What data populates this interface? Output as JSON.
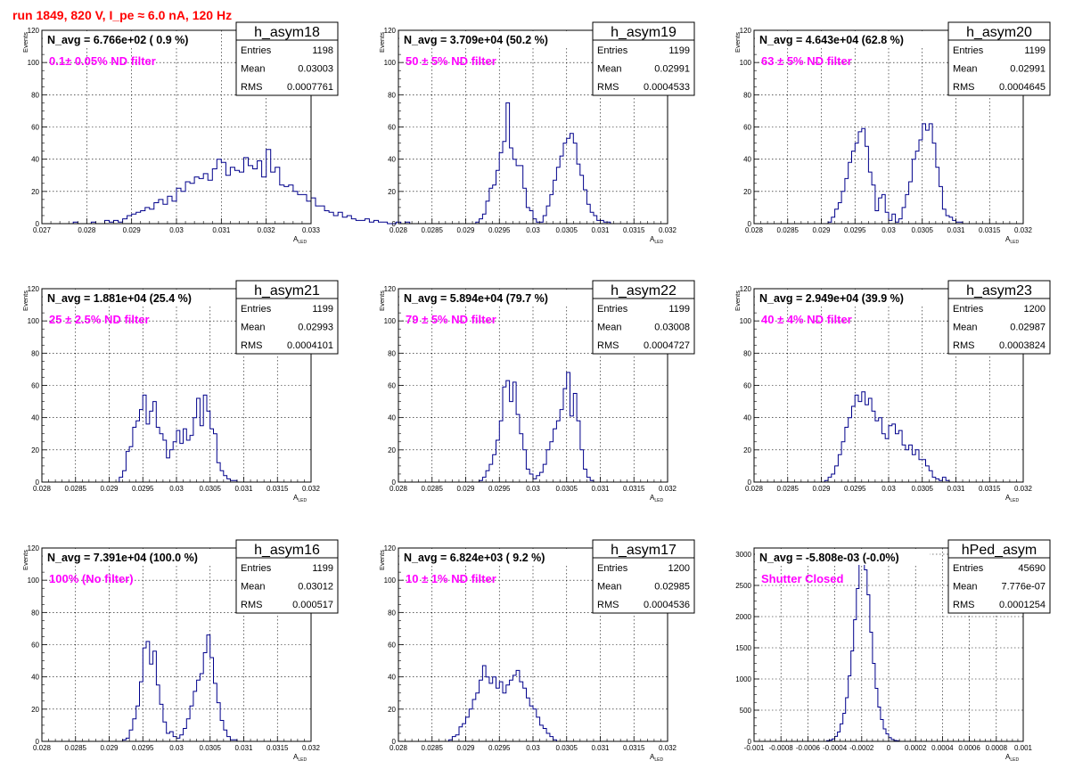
{
  "page": {
    "header": "run 1849,   820 V, I_pe ≈ 6.0 nA, 120 Hz",
    "colors": {
      "hist": "#00008b",
      "filter_text": "#ff00ff",
      "header": "#ff0000",
      "grid": "#000000"
    }
  },
  "chart_data": [
    {
      "type": "bar",
      "name": "h_asym18",
      "title": "N_avg = 6.766e+02 ( 0.9 %)",
      "annotation": "0.1± 0.05% ND filter",
      "stats": [
        {
          "label": "Entries",
          "value": "1198"
        },
        {
          "label": "Mean",
          "value": "0.03003"
        },
        {
          "label": "RMS",
          "value": "0.0007761"
        }
      ],
      "xlabel": "A",
      "xlabel_sub": "LED",
      "ylabel": "Events",
      "xlim": [
        0.027,
        0.033
      ],
      "ylim": [
        0,
        120
      ],
      "xticks": [
        0.027,
        0.028,
        0.029,
        0.03,
        0.031,
        0.032,
        0.033
      ],
      "xtick_labels": [
        "0.027",
        "0.028",
        "0.029",
        "0.03",
        "0.031",
        "0.032",
        "0.033"
      ],
      "yticks": [
        0,
        20,
        40,
        60,
        80,
        100,
        120
      ],
      "ytick_labels": [
        "0",
        "20",
        "40",
        "60",
        "80",
        "100",
        "120"
      ],
      "grid": true,
      "x_start": 0.0277,
      "bin_width": 0.0001,
      "values": [
        1,
        0,
        0,
        0,
        1,
        0,
        0,
        2,
        1,
        2,
        1,
        3,
        5,
        6,
        7,
        8,
        10,
        9,
        13,
        15,
        12,
        17,
        14,
        22,
        20,
        26,
        25,
        29,
        28,
        31,
        27,
        34,
        40,
        38,
        30,
        35,
        33,
        32,
        41,
        36,
        34,
        39,
        29,
        46,
        32,
        35,
        24,
        23,
        24,
        20,
        18,
        18,
        14,
        16,
        11,
        11,
        8,
        7,
        5,
        7,
        4,
        5,
        3,
        2,
        2,
        3,
        1,
        2,
        1,
        1,
        0,
        0,
        1,
        0,
        1
      ]
    },
    {
      "type": "bar",
      "name": "h_asym19",
      "title": "N_avg = 3.709e+04 (50.2 %)",
      "annotation": "50 ± 5% ND filter",
      "stats": [
        {
          "label": "Entries",
          "value": "1199"
        },
        {
          "label": "Mean",
          "value": "0.02991"
        },
        {
          "label": "RMS",
          "value": "0.0004533"
        }
      ],
      "xlabel": "A",
      "xlabel_sub": "LED",
      "ylabel": "Events",
      "xlim": [
        0.028,
        0.032
      ],
      "ylim": [
        0,
        120
      ],
      "xticks": [
        0.028,
        0.0285,
        0.029,
        0.0295,
        0.03,
        0.0305,
        0.031,
        0.0315,
        0.032
      ],
      "xtick_labels": [
        "0.028",
        "0.0285",
        "0.029",
        "0.0295",
        "0.03",
        "0.0305",
        "0.031",
        "0.0315",
        "0.032"
      ],
      "yticks": [
        0,
        20,
        40,
        60,
        80,
        100,
        120
      ],
      "ytick_labels": [
        "0",
        "20",
        "40",
        "60",
        "80",
        "100",
        "120"
      ],
      "grid": true,
      "x_start": 0.02915,
      "bin_width": 5e-05,
      "values": [
        1,
        3,
        6,
        14,
        22,
        24,
        33,
        44,
        51,
        75,
        47,
        40,
        36,
        36,
        22,
        10,
        8,
        3,
        1,
        1,
        5,
        11,
        18,
        27,
        35,
        42,
        50,
        53,
        56,
        50,
        37,
        30,
        21,
        12,
        7,
        5,
        2,
        2,
        1,
        1
      ]
    },
    {
      "type": "bar",
      "name": "h_asym20",
      "title": "N_avg = 4.643e+04 (62.8 %)",
      "annotation": "63 ± 5% ND filter",
      "stats": [
        {
          "label": "Entries",
          "value": "1199"
        },
        {
          "label": "Mean",
          "value": "0.02991"
        },
        {
          "label": "RMS",
          "value": "0.0004645"
        }
      ],
      "xlabel": "A",
      "xlabel_sub": "LED",
      "ylabel": "Events",
      "xlim": [
        0.028,
        0.032
      ],
      "ylim": [
        0,
        120
      ],
      "xticks": [
        0.028,
        0.0285,
        0.029,
        0.0295,
        0.03,
        0.0305,
        0.031,
        0.0315,
        0.032
      ],
      "xtick_labels": [
        "0.028",
        "0.0285",
        "0.029",
        "0.0295",
        "0.03",
        "0.0305",
        "0.031",
        "0.0315",
        "0.032"
      ],
      "yticks": [
        0,
        20,
        40,
        60,
        80,
        100,
        120
      ],
      "ytick_labels": [
        "0",
        "20",
        "40",
        "60",
        "80",
        "100",
        "120"
      ],
      "grid": true,
      "x_start": 0.0291,
      "bin_width": 5e-05,
      "values": [
        1,
        4,
        9,
        13,
        20,
        28,
        38,
        45,
        50,
        57,
        59,
        48,
        32,
        24,
        8,
        16,
        18,
        7,
        2,
        6,
        1,
        3,
        10,
        18,
        26,
        40,
        45,
        52,
        62,
        58,
        62,
        50,
        35,
        23,
        9,
        5,
        4,
        2,
        1,
        1
      ]
    },
    {
      "type": "bar",
      "name": "h_asym21",
      "title": "N_avg = 1.881e+04 (25.4 %)",
      "annotation": "25 ± 2.5% ND filter",
      "stats": [
        {
          "label": "Entries",
          "value": "1199"
        },
        {
          "label": "Mean",
          "value": "0.02993"
        },
        {
          "label": "RMS",
          "value": "0.0004101"
        }
      ],
      "xlabel": "A",
      "xlabel_sub": "LED",
      "ylabel": "Events",
      "xlim": [
        0.028,
        0.032
      ],
      "ylim": [
        0,
        120
      ],
      "xticks": [
        0.028,
        0.0285,
        0.029,
        0.0295,
        0.03,
        0.0305,
        0.031,
        0.0315,
        0.032
      ],
      "xtick_labels": [
        "0.028",
        "0.0285",
        "0.029",
        "0.0295",
        "0.03",
        "0.0305",
        "0.031",
        "0.0315",
        "0.032"
      ],
      "yticks": [
        0,
        20,
        40,
        60,
        80,
        100,
        120
      ],
      "ytick_labels": [
        "0",
        "20",
        "40",
        "60",
        "80",
        "100",
        "120"
      ],
      "grid": true,
      "x_start": 0.02915,
      "bin_width": 5e-05,
      "values": [
        3,
        7,
        19,
        22,
        34,
        38,
        45,
        54,
        36,
        44,
        50,
        34,
        30,
        26,
        15,
        20,
        25,
        32,
        24,
        33,
        26,
        29,
        40,
        52,
        35,
        54,
        44,
        33,
        30,
        12,
        7,
        4,
        2,
        1,
        1
      ]
    },
    {
      "type": "bar",
      "name": "h_asym22",
      "title": "N_avg = 5.894e+04 (79.7 %)",
      "annotation": "79 ± 5% ND filter",
      "stats": [
        {
          "label": "Entries",
          "value": "1199"
        },
        {
          "label": "Mean",
          "value": "0.03008"
        },
        {
          "label": "RMS",
          "value": "0.0004727"
        }
      ],
      "xlabel": "A",
      "xlabel_sub": "LED",
      "ylabel": "Events",
      "xlim": [
        0.028,
        0.032
      ],
      "ylim": [
        0,
        120
      ],
      "xticks": [
        0.028,
        0.0285,
        0.029,
        0.0295,
        0.03,
        0.0305,
        0.031,
        0.0315,
        0.032
      ],
      "xtick_labels": [
        "0.028",
        "0.0285",
        "0.029",
        "0.0295",
        "0.03",
        "0.0305",
        "0.031",
        "0.0315",
        "0.032"
      ],
      "yticks": [
        0,
        20,
        40,
        60,
        80,
        100,
        120
      ],
      "ytick_labels": [
        "0",
        "20",
        "40",
        "60",
        "80",
        "100",
        "120"
      ],
      "grid": true,
      "x_start": 0.0292,
      "bin_width": 5e-05,
      "values": [
        1,
        3,
        7,
        11,
        17,
        26,
        38,
        59,
        63,
        50,
        62,
        42,
        30,
        20,
        8,
        5,
        2,
        4,
        6,
        11,
        20,
        25,
        33,
        38,
        45,
        58,
        68,
        41,
        55,
        38,
        20,
        8,
        3,
        1
      ]
    },
    {
      "type": "bar",
      "name": "h_asym23",
      "title": "N_avg = 2.949e+04 (39.9 %)",
      "annotation": "40 ± 4% ND filter",
      "stats": [
        {
          "label": "Entries",
          "value": "1200"
        },
        {
          "label": "Mean",
          "value": "0.02987"
        },
        {
          "label": "RMS",
          "value": "0.0003824"
        }
      ],
      "xlabel": "A",
      "xlabel_sub": "LED",
      "ylabel": "Events",
      "xlim": [
        0.028,
        0.032
      ],
      "ylim": [
        0,
        120
      ],
      "xticks": [
        0.028,
        0.0285,
        0.029,
        0.0295,
        0.03,
        0.0305,
        0.031,
        0.0315,
        0.032
      ],
      "xtick_labels": [
        "0.028",
        "0.0285",
        "0.029",
        "0.0295",
        "0.03",
        "0.0305",
        "0.031",
        "0.0315",
        "0.032"
      ],
      "yticks": [
        0,
        20,
        40,
        60,
        80,
        100,
        120
      ],
      "ytick_labels": [
        "0",
        "20",
        "40",
        "60",
        "80",
        "100",
        "120"
      ],
      "grid": true,
      "x_start": 0.02905,
      "bin_width": 5e-05,
      "values": [
        1,
        3,
        5,
        10,
        17,
        25,
        34,
        40,
        47,
        54,
        50,
        56,
        48,
        52,
        44,
        38,
        40,
        30,
        27,
        35,
        36,
        30,
        32,
        23,
        20,
        23,
        17,
        20,
        14,
        14,
        10,
        7,
        3,
        2,
        1,
        3,
        1
      ]
    },
    {
      "type": "bar",
      "name": "h_asym16",
      "title": "N_avg = 7.391e+04 (100.0 %)",
      "annotation": "100% (No filter)",
      "stats": [
        {
          "label": "Entries",
          "value": "1199"
        },
        {
          "label": "Mean",
          "value": "0.03012"
        },
        {
          "label": "RMS",
          "value": "0.000517"
        }
      ],
      "xlabel": "A",
      "xlabel_sub": "LED",
      "ylabel": "Events",
      "xlim": [
        0.028,
        0.032
      ],
      "ylim": [
        0,
        120
      ],
      "xticks": [
        0.028,
        0.0285,
        0.029,
        0.0295,
        0.03,
        0.0305,
        0.031,
        0.0315,
        0.032
      ],
      "xtick_labels": [
        "0.028",
        "0.0285",
        "0.029",
        "0.0295",
        "0.03",
        "0.0305",
        "0.031",
        "0.0315",
        "0.032"
      ],
      "yticks": [
        0,
        20,
        40,
        60,
        80,
        100,
        120
      ],
      "ytick_labels": [
        "0",
        "20",
        "40",
        "60",
        "80",
        "100",
        "120"
      ],
      "grid": true,
      "x_start": 0.0292,
      "bin_width": 5e-05,
      "values": [
        1,
        2,
        7,
        14,
        22,
        37,
        58,
        62,
        48,
        56,
        35,
        23,
        12,
        5,
        6,
        3,
        2,
        4,
        8,
        14,
        22,
        31,
        38,
        42,
        55,
        66,
        52,
        36,
        24,
        13,
        7,
        3,
        1,
        1
      ]
    },
    {
      "type": "bar",
      "name": "h_asym17",
      "title": "N_avg = 6.824e+03 ( 9.2 %)",
      "annotation": "10 ± 1% ND filter",
      "stats": [
        {
          "label": "Entries",
          "value": "1200"
        },
        {
          "label": "Mean",
          "value": "0.02985"
        },
        {
          "label": "RMS",
          "value": "0.0004536"
        }
      ],
      "xlabel": "A",
      "xlabel_sub": "LED",
      "ylabel": "Events",
      "xlim": [
        0.028,
        0.032
      ],
      "ylim": [
        0,
        120
      ],
      "xticks": [
        0.028,
        0.0285,
        0.029,
        0.0295,
        0.03,
        0.0305,
        0.031,
        0.0315,
        0.032
      ],
      "xtick_labels": [
        "0.028",
        "0.0285",
        "0.029",
        "0.0295",
        "0.03",
        "0.0305",
        "0.031",
        "0.0315",
        "0.032"
      ],
      "yticks": [
        0,
        20,
        40,
        60,
        80,
        100,
        120
      ],
      "ytick_labels": [
        "0",
        "20",
        "40",
        "60",
        "80",
        "100",
        "120"
      ],
      "grid": true,
      "x_start": 0.02875,
      "bin_width": 5e-05,
      "values": [
        1,
        3,
        4,
        9,
        11,
        15,
        20,
        26,
        30,
        38,
        47,
        40,
        36,
        40,
        33,
        37,
        30,
        35,
        38,
        41,
        44,
        37,
        33,
        27,
        22,
        20,
        15,
        10,
        8,
        5,
        3,
        1
      ]
    },
    {
      "type": "bar",
      "name": "hPed_asym",
      "title": "N_avg = -5.808e-03 (-0.0%)",
      "annotation": "Shutter Closed",
      "stats": [
        {
          "label": "Entries",
          "value": "45690"
        },
        {
          "label": "Mean",
          "value": "7.776e-07"
        },
        {
          "label": "RMS",
          "value": "0.0001254"
        }
      ],
      "xlabel": "A",
      "xlabel_sub": "LED",
      "ylabel": "",
      "xlim": [
        -0.001,
        0.001
      ],
      "ylim": [
        0,
        3100
      ],
      "xticks": [
        -0.001,
        -0.0008,
        -0.0006,
        -0.0004,
        -0.0002,
        0,
        0.0002,
        0.0004,
        0.0006,
        0.0008,
        0.001
      ],
      "xtick_labels": [
        "-0.001",
        "-0.0008",
        "-0.0006",
        "-0.0004",
        "-0.0002",
        "0",
        "0.0002",
        "0.0004",
        "0.0006",
        "0.0008",
        "0.001"
      ],
      "yticks": [
        0,
        500,
        1000,
        1500,
        2000,
        2500,
        3000
      ],
      "ytick_labels": [
        "0",
        "500",
        "1000",
        "1500",
        "2000",
        "2500",
        "3000"
      ],
      "grid": true,
      "x_start": -0.00046,
      "bin_width": 2e-05,
      "values": [
        10,
        20,
        40,
        80,
        150,
        280,
        450,
        700,
        1050,
        1450,
        1950,
        2450,
        2850,
        2950,
        2750,
        2350,
        1750,
        1250,
        850,
        550,
        350,
        200,
        120,
        60,
        30,
        15,
        8
      ]
    }
  ]
}
